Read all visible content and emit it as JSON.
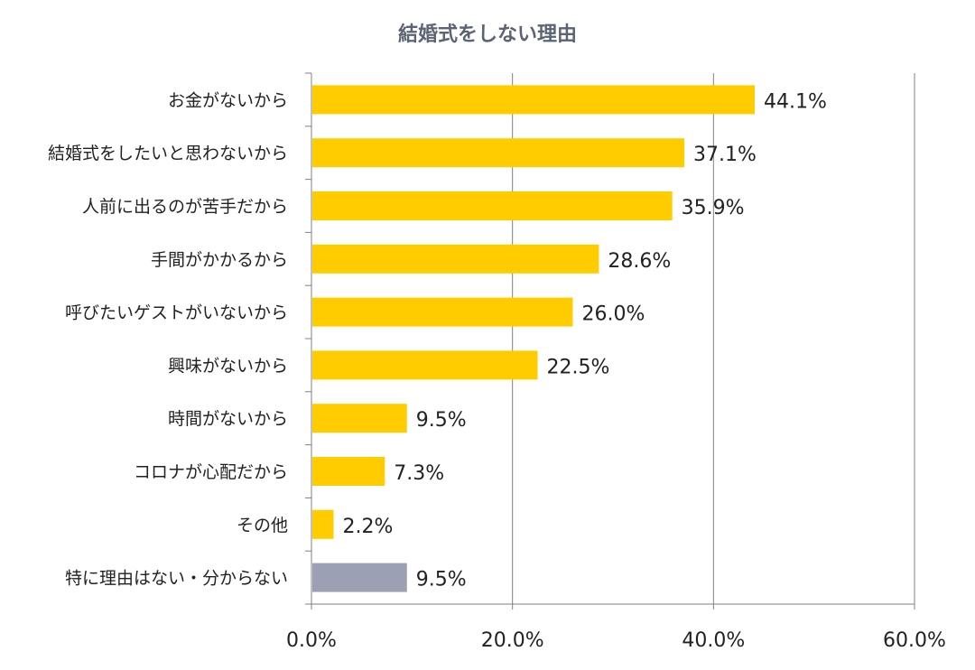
{
  "chart_data": {
    "type": "bar",
    "orientation": "horizontal",
    "title": "結婚式をしない理由",
    "categories": [
      "お金がないから",
      "結婚式をしたいと思わないから",
      "人前に出るのが苦手だから",
      "手間がかかるから",
      "呼びたいゲストがいないから",
      "興味がないから",
      "時間がないから",
      "コロナが心配だから",
      "その他",
      "特に理由はない・分からない"
    ],
    "values": [
      44.1,
      37.1,
      35.9,
      28.6,
      26.0,
      22.5,
      9.5,
      7.3,
      2.2,
      9.5
    ],
    "data_labels": [
      "44.1%",
      "37.1%",
      "35.9%",
      "28.6%",
      "26.0%",
      "22.5%",
      "9.5%",
      "7.3%",
      "2.2%",
      "9.5%"
    ],
    "bar_colors": [
      "#FFCC00",
      "#FFCC00",
      "#FFCC00",
      "#FFCC00",
      "#FFCC00",
      "#FFCC00",
      "#FFCC00",
      "#FFCC00",
      "#FFCC00",
      "#9BA0B4"
    ],
    "xlim": [
      0,
      60
    ],
    "x_ticks": [
      "0.0%",
      "20.0%",
      "40.0%",
      "60.0%"
    ],
    "grid": "vertical",
    "xlabel": "",
    "ylabel": ""
  }
}
